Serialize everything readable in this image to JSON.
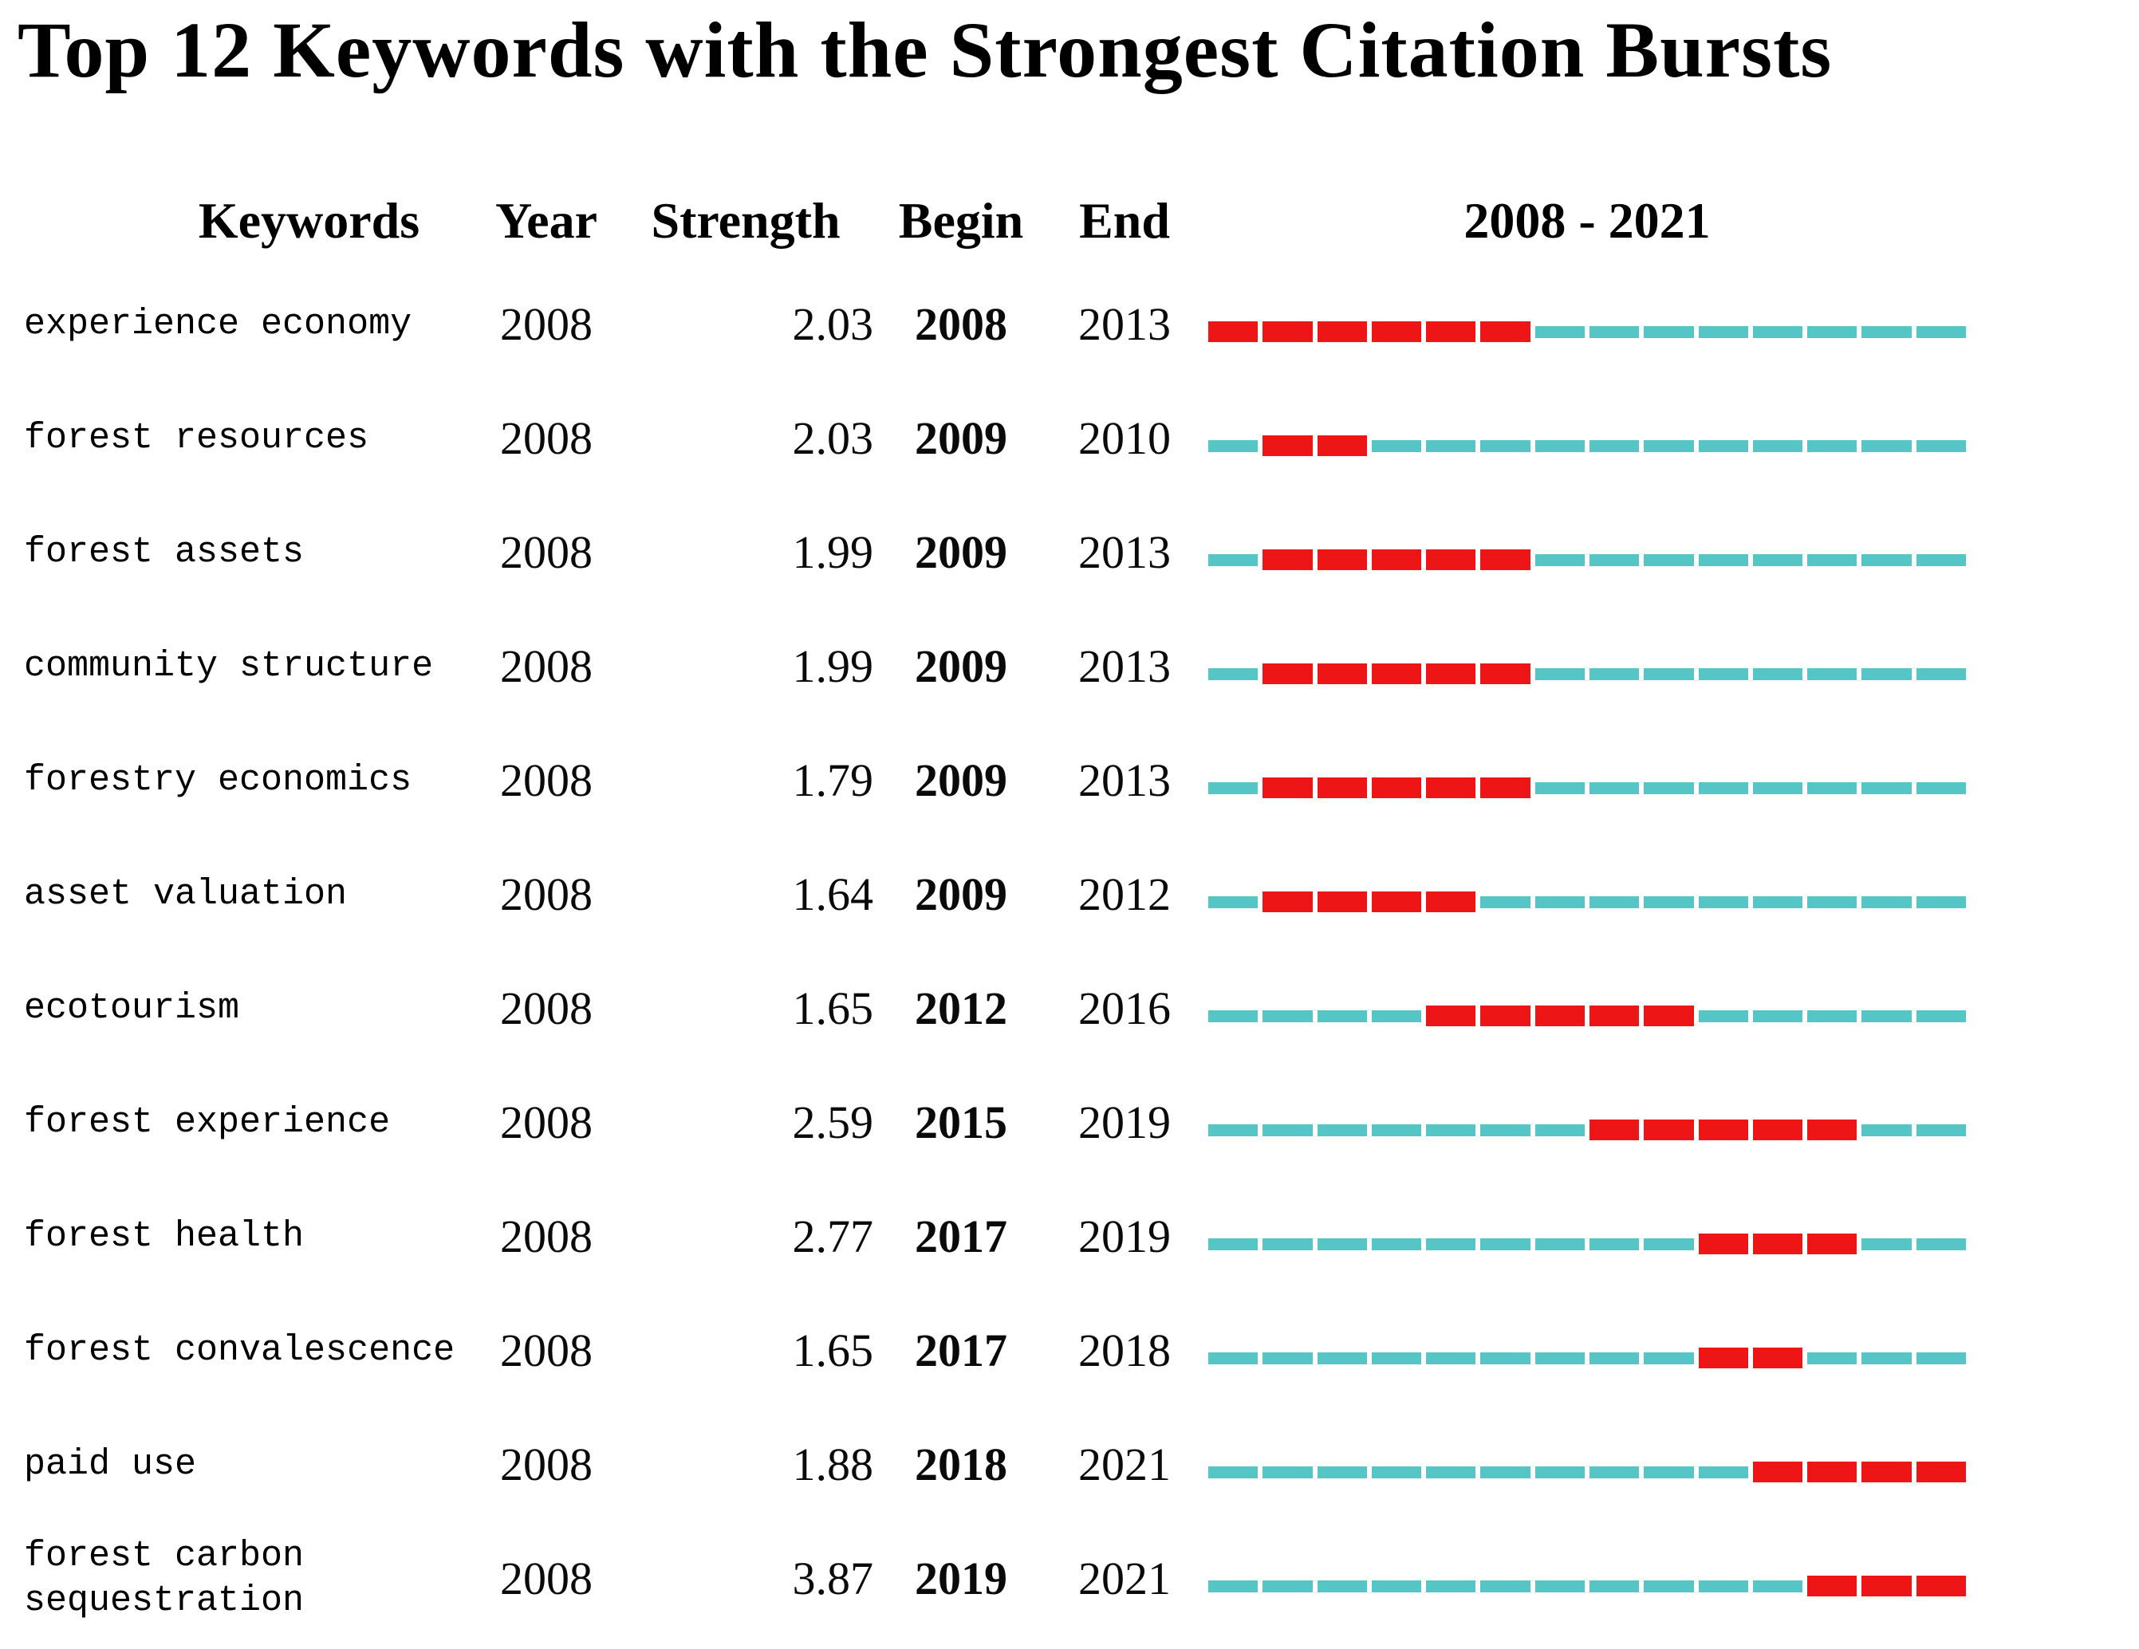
{
  "chart_data": {
    "type": "table",
    "title": "Top 12 Keywords with the Strongest Citation Bursts",
    "columns": [
      "Keywords",
      "Year",
      "Strength",
      "Begin",
      "End",
      "2008 - 2021"
    ],
    "year_start": 2008,
    "year_end": 2021,
    "timeline_header": "2008 - 2021",
    "legend_position": "none",
    "colors": {
      "burst": "#ed1515",
      "base": "#55c5c5"
    },
    "rows": [
      {
        "keyword": "experience economy",
        "year": "2008",
        "strength": "2.03",
        "begin": 2008,
        "end": 2013
      },
      {
        "keyword": "forest resources",
        "year": "2008",
        "strength": "2.03",
        "begin": 2009,
        "end": 2010
      },
      {
        "keyword": "forest assets",
        "year": "2008",
        "strength": "1.99",
        "begin": 2009,
        "end": 2013
      },
      {
        "keyword": "community structure",
        "year": "2008",
        "strength": "1.99",
        "begin": 2009,
        "end": 2013
      },
      {
        "keyword": "forestry economics",
        "year": "2008",
        "strength": "1.79",
        "begin": 2009,
        "end": 2013
      },
      {
        "keyword": "asset valuation",
        "year": "2008",
        "strength": "1.64",
        "begin": 2009,
        "end": 2012
      },
      {
        "keyword": "ecotourism",
        "year": "2008",
        "strength": "1.65",
        "begin": 2012,
        "end": 2016
      },
      {
        "keyword": "forest experience",
        "year": "2008",
        "strength": "2.59",
        "begin": 2015,
        "end": 2019
      },
      {
        "keyword": "forest health",
        "year": "2008",
        "strength": "2.77",
        "begin": 2017,
        "end": 2019
      },
      {
        "keyword": "forest convalescence",
        "year": "2008",
        "strength": "1.65",
        "begin": 2017,
        "end": 2018
      },
      {
        "keyword": "paid use",
        "year": "2008",
        "strength": "1.88",
        "begin": 2018,
        "end": 2021
      },
      {
        "keyword": "forest carbon sequestration",
        "year": "2008",
        "strength": "3.87",
        "begin": 2019,
        "end": 2021
      }
    ]
  }
}
